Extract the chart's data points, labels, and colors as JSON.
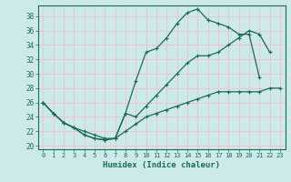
{
  "xlabel": "Humidex (Indice chaleur)",
  "xlim": [
    -0.5,
    23.5
  ],
  "ylim": [
    19.5,
    39.5
  ],
  "xticks": [
    0,
    1,
    2,
    3,
    4,
    5,
    6,
    7,
    8,
    9,
    10,
    11,
    12,
    13,
    14,
    15,
    16,
    17,
    18,
    19,
    20,
    21,
    22,
    23
  ],
  "yticks": [
    20,
    22,
    24,
    26,
    28,
    30,
    32,
    34,
    36,
    38
  ],
  "bg_color": "#cceaea",
  "grid_color": "#e8c8c8",
  "line_color": "#1a6b5a",
  "line1_y": [
    26.0,
    24.5,
    23.2,
    22.5,
    21.5,
    21.0,
    20.8,
    21.0,
    24.5,
    29.0,
    33.0,
    33.5,
    35.0,
    37.0,
    38.5,
    39.0,
    37.5,
    37.0,
    36.5,
    35.5,
    35.5,
    29.5,
    null,
    null
  ],
  "line2_y": [
    26.0,
    24.5,
    23.2,
    22.5,
    21.5,
    21.0,
    20.8,
    21.0,
    24.5,
    24.0,
    25.5,
    27.0,
    28.5,
    30.0,
    31.5,
    32.5,
    32.5,
    33.0,
    34.0,
    35.0,
    36.0,
    35.5,
    33.0,
    null
  ],
  "line3_y": [
    26.0,
    24.5,
    23.2,
    22.5,
    22.0,
    21.5,
    21.0,
    21.0,
    22.0,
    23.0,
    24.0,
    24.5,
    25.0,
    25.5,
    26.0,
    26.5,
    27.0,
    27.5,
    27.5,
    27.5,
    27.5,
    27.5,
    28.0,
    28.0
  ]
}
